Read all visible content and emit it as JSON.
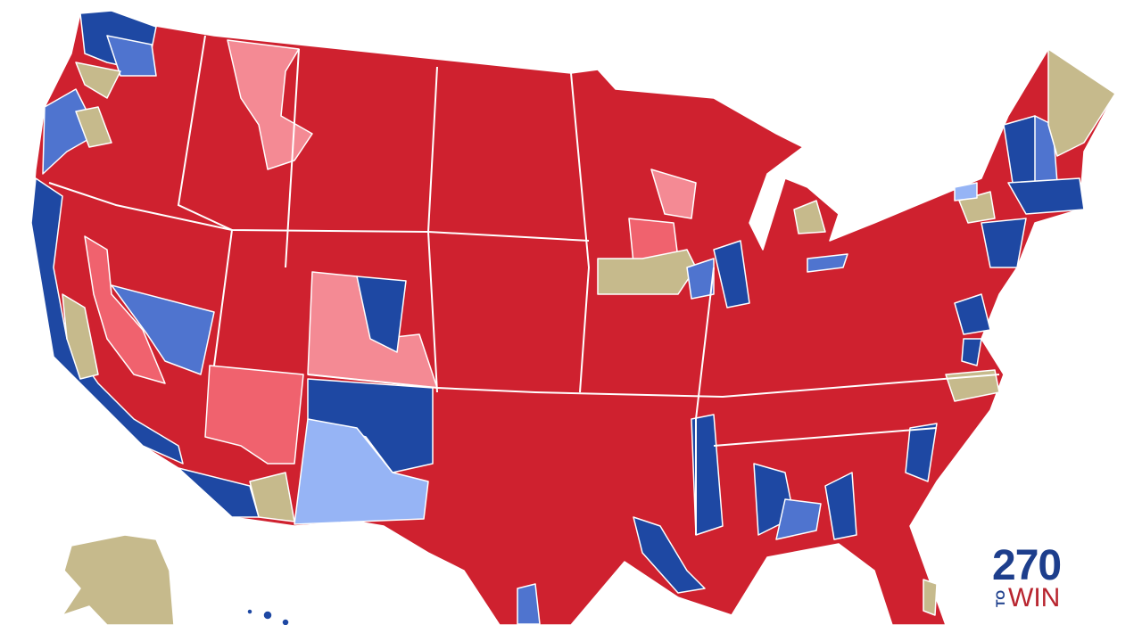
{
  "logo": {
    "number": "270",
    "to": "TO",
    "win": "WIN"
  }
}
